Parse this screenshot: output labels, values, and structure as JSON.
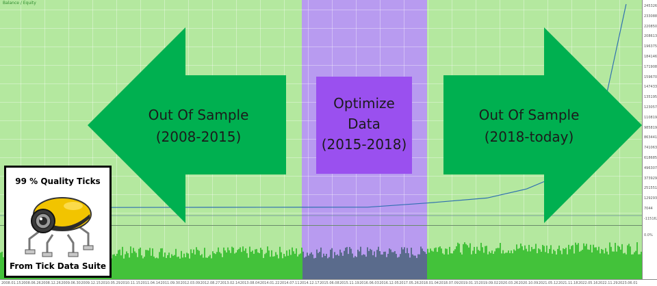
{
  "legend": {
    "text": "Balance / Equity"
  },
  "arrows": {
    "left": {
      "line1": "Out Of Sample",
      "line2": "(2008-2015)"
    },
    "right": {
      "line1": "Out Of Sample",
      "line2": "(2018-today)"
    }
  },
  "optimize_box": {
    "line1": "Optimize",
    "line2": "Data",
    "line3": "(2015-2018)"
  },
  "badge": {
    "top_text": "99 % Quality Ticks",
    "bottom_text": "From Tick Data Suite"
  },
  "colors": {
    "out_of_sample": "#b4e89f",
    "optimize_band": "#b89bf0",
    "optimize_box": "#9a50ef",
    "arrow": "#00b050",
    "balance_line": "#2f6fb0",
    "deposit_load": "#43c23a"
  },
  "icons": {
    "mascot": "tick-data-suite-robot-icon"
  },
  "right_axis_labels": [
    "2453265",
    "2330887",
    "2208509",
    "2086131",
    "1963753",
    "1841465",
    "1719087",
    "1596709",
    "1474331",
    "1351953",
    "1230575",
    "1108197",
    "985819",
    "863441",
    "741063",
    "618685",
    "496307",
    "373929",
    "251551",
    "129293",
    "7044",
    "-115162",
    "0.0%"
  ],
  "bottom_axis_labels": [
    "2008.01.15",
    "2008.06.26",
    "2008.12.26",
    "2009.06.30",
    "2009.12.15",
    "2010.05.29",
    "2010.11.15",
    "2011.04.14",
    "2011.09.30",
    "2012.03.09",
    "2012.08.27",
    "2013.02.14",
    "2013.08.04",
    "2014.01.22",
    "2014.07.11",
    "2014.12.17",
    "2015.06.08",
    "2015.11.19",
    "2016.06.03",
    "2016.12.05",
    "2017.05.26",
    "2018.01.04",
    "2018.07.09",
    "2019.01.15",
    "2019.09.02",
    "2020.03.26",
    "2020.10.09",
    "2021.05.12",
    "2021.11.18",
    "2022.05.16",
    "2022.11.29",
    "2023.06.01"
  ],
  "chart_data": {
    "type": "line",
    "series": [
      {
        "name": "Balance",
        "x": [
          "2008.01.15",
          "2010.05.29",
          "2012.08.27",
          "2014.12.17",
          "2016.06.03",
          "2018.01.04",
          "2019.09.02",
          "2020.10.09",
          "2021.05.12",
          "2021.11.18",
          "2022.05.16",
          "2022.11.29",
          "2023.06.01"
        ],
        "values": [
          7044,
          7044,
          8000,
          9000,
          10000,
          60000,
          120000,
          230000,
          330000,
          560000,
          900000,
          1350000,
          2453265
        ]
      }
    ],
    "ylim": [
      -115162,
      2453265
    ]
  }
}
